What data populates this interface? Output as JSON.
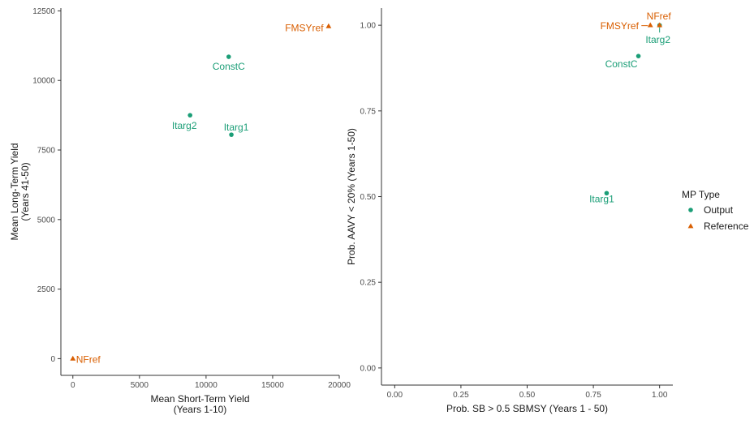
{
  "colors": {
    "output": "#1b9e77",
    "reference": "#d95f02",
    "axis": "#333333",
    "tick_text": "#4d4d4d"
  },
  "legend": {
    "title": "MP Type",
    "entries": [
      {
        "name": "Output",
        "shape": "circle",
        "color": "#1b9e77"
      },
      {
        "name": "Reference",
        "shape": "triangle",
        "color": "#d95f02"
      }
    ],
    "position": "right"
  },
  "chart_data": [
    {
      "type": "scatter",
      "xlabel": [
        "Mean Short-Term Yield",
        "(Years 1-10)"
      ],
      "ylabel": [
        "Mean Long-Term Yield",
        "(Years 41-50)"
      ],
      "xlim": [
        -900,
        20000
      ],
      "ylim": [
        -600,
        12600
      ],
      "xticks": [
        0,
        5000,
        10000,
        15000,
        20000
      ],
      "xtick_labels": [
        "0",
        "5000",
        "10000",
        "15000",
        "20000"
      ],
      "yticks": [
        0,
        2500,
        5000,
        7500,
        10000,
        12500
      ],
      "ytick_labels": [
        "0",
        "2500",
        "5000",
        "7500",
        "10000",
        "12500"
      ],
      "grid": false,
      "points": [
        {
          "label": "ConstC",
          "x": 11700,
          "y": 10850,
          "type": "Output"
        },
        {
          "label": "Itarg2",
          "x": 8800,
          "y": 8750,
          "type": "Output"
        },
        {
          "label": "Itarg1",
          "x": 11900,
          "y": 8050,
          "type": "Output"
        },
        {
          "label": "FMSYref",
          "x": 19200,
          "y": 11950,
          "type": "Reference"
        },
        {
          "label": "NFref",
          "x": 0,
          "y": 0,
          "type": "Reference"
        }
      ]
    },
    {
      "type": "scatter",
      "xlabel": [
        "Prob. SB > 0.5 SBMSY (Years 1 - 50)"
      ],
      "ylabel": [
        "Prob. AAVY < 20% (Years 1-50)"
      ],
      "xlim": [
        -0.05,
        1.05
      ],
      "ylim": [
        -0.05,
        1.05
      ],
      "xticks": [
        0,
        0.25,
        0.5,
        0.75,
        1.0
      ],
      "xtick_labels": [
        "0.00",
        "0.25",
        "0.50",
        "0.75",
        "1.00"
      ],
      "yticks": [
        0,
        0.25,
        0.5,
        0.75,
        1.0
      ],
      "ytick_labels": [
        "0.00",
        "0.25",
        "0.50",
        "0.75",
        "1.00"
      ],
      "grid": false,
      "points": [
        {
          "label": "ConstC",
          "x": 0.92,
          "y": 0.91,
          "type": "Output"
        },
        {
          "label": "Itarg2",
          "x": 1.0,
          "y": 1.0,
          "type": "Output"
        },
        {
          "label": "Itarg1",
          "x": 0.8,
          "y": 0.51,
          "type": "Output"
        },
        {
          "label": "FMSYref",
          "x": 0.965,
          "y": 1.0,
          "type": "Reference"
        },
        {
          "label": "NFref",
          "x": 1.0,
          "y": 1.0,
          "type": "Reference"
        }
      ]
    }
  ]
}
